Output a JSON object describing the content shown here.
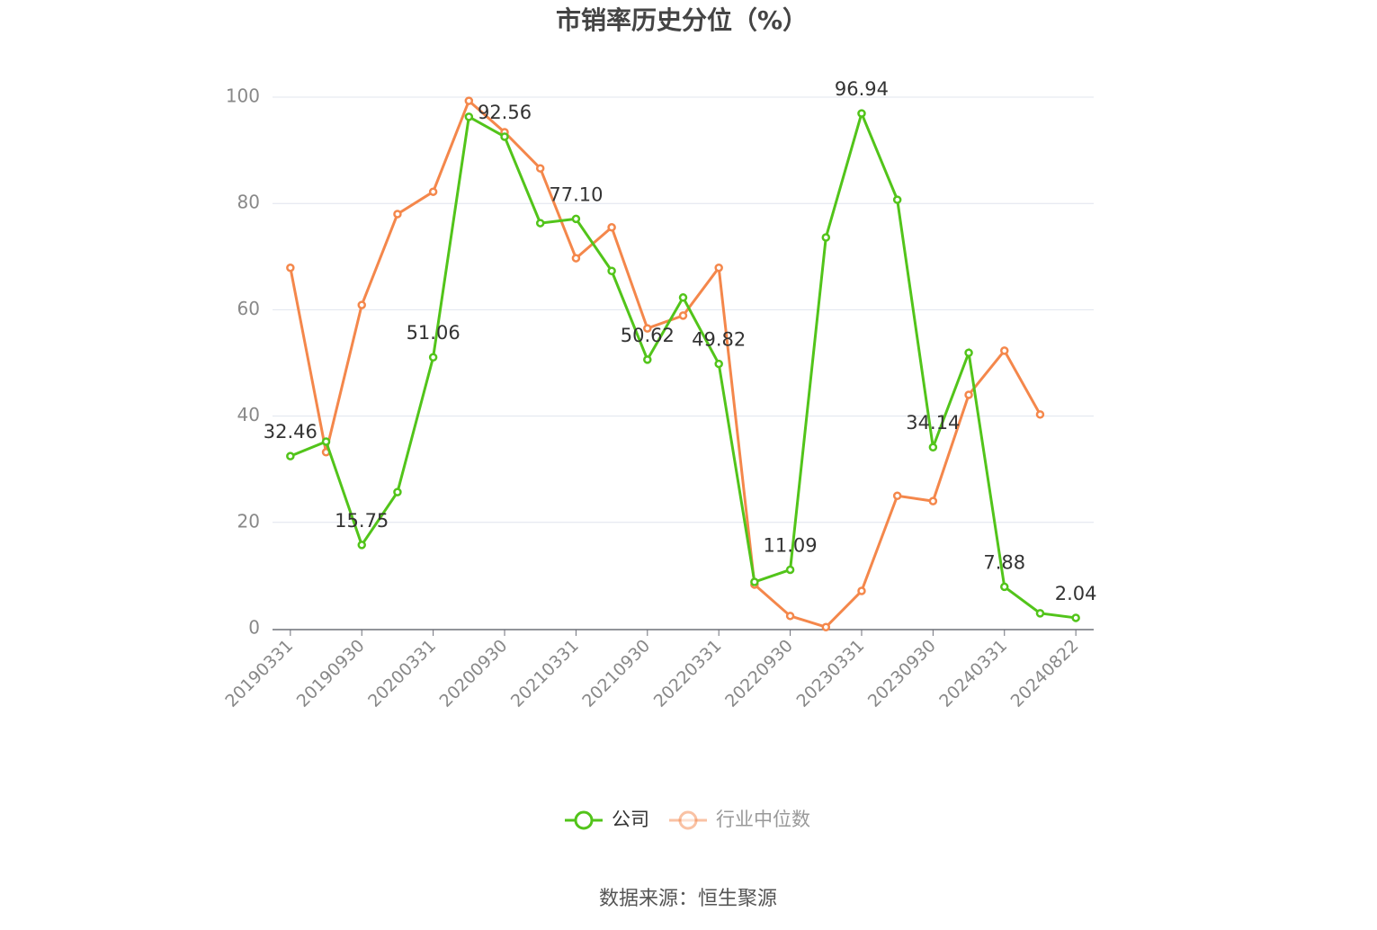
{
  "chart_data": {
    "type": "line",
    "title": "市销率历史分位（%）",
    "source": "数据来源：恒生聚源",
    "categories": [
      "20190331",
      null,
      "20190930",
      null,
      "20200331",
      null,
      "20200930",
      null,
      "20210331",
      null,
      "20210930",
      null,
      "20220331",
      null,
      "20220930",
      null,
      "20230331",
      null,
      "20230930",
      null,
      "20240331",
      null,
      "20240822"
    ],
    "series": [
      {
        "name": "公司",
        "color": "#52c41a",
        "values": [
          32.46,
          35.2,
          15.75,
          25.7,
          51.06,
          96.3,
          92.56,
          76.3,
          77.1,
          67.3,
          50.62,
          62.3,
          49.82,
          8.8,
          11.09,
          73.6,
          96.94,
          80.7,
          34.14,
          51.9,
          7.88,
          2.9,
          2.04
        ],
        "value_labels": [
          "32.46",
          null,
          "15.75",
          null,
          "51.06",
          null,
          "92.56",
          null,
          "77.10",
          null,
          "50.62",
          null,
          "49.82",
          null,
          "11.09",
          null,
          "96.94",
          null,
          "34.14",
          null,
          "7.88",
          null,
          "2.04"
        ]
      },
      {
        "name": "行业中位数",
        "color": "#f4874b",
        "values": [
          67.9,
          33.2,
          60.9,
          78.0,
          82.2,
          99.3,
          93.4,
          86.6,
          69.7,
          75.5,
          56.5,
          58.9,
          67.9,
          8.3,
          2.4,
          0.3,
          7.1,
          25.0,
          24.0,
          44.0,
          52.3,
          40.3,
          null
        ]
      }
    ],
    "ylim": [
      0,
      100
    ],
    "yticks": [
      0,
      20,
      40,
      60,
      80,
      100
    ],
    "grid": true,
    "legend": "bottom"
  }
}
